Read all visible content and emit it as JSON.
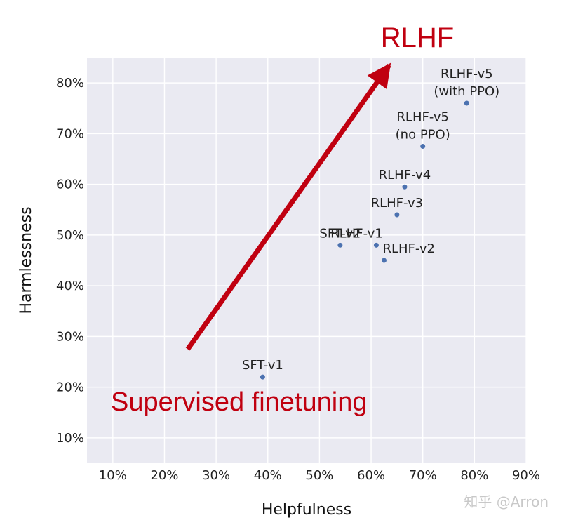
{
  "chart_data": {
    "type": "scatter",
    "xlabel": "Helpfulness",
    "ylabel": "Harmlessness",
    "xlim": [
      0.05,
      0.9
    ],
    "ylim": [
      0.05,
      0.85
    ],
    "xticks": [
      0.1,
      0.2,
      0.3,
      0.4,
      0.5,
      0.6,
      0.7,
      0.8,
      0.9
    ],
    "yticks": [
      0.1,
      0.2,
      0.3,
      0.4,
      0.5,
      0.6,
      0.7,
      0.8
    ],
    "tick_format": "percent",
    "grid": true,
    "point_color": "#4c72b0",
    "background_color": "#eaeaf2",
    "points": [
      {
        "label": "SFT-v1",
        "x": 0.39,
        "y": 0.22
      },
      {
        "label": "SFT-v2",
        "x": 0.54,
        "y": 0.48
      },
      {
        "label": "RLHF-v1",
        "x": 0.61,
        "y": 0.48
      },
      {
        "label": "RLHF-v2",
        "x": 0.625,
        "y": 0.45
      },
      {
        "label": "RLHF-v3",
        "x": 0.65,
        "y": 0.54
      },
      {
        "label": "RLHF-v4",
        "x": 0.665,
        "y": 0.595
      },
      {
        "label": "RLHF-v5\n(no PPO)",
        "x": 0.7,
        "y": 0.675
      },
      {
        "label": "RLHF-v5\n(with PPO)",
        "x": 0.785,
        "y": 0.76
      }
    ],
    "arrow": {
      "from": {
        "x": 0.245,
        "y": 0.275
      },
      "to": {
        "x": 0.635,
        "y": 0.835
      },
      "color": "#c00010"
    },
    "annotations": {
      "top": "RLHF",
      "bottom": "Supervised finetuning",
      "color": "#c00010"
    }
  },
  "watermark": "知乎 @Arron"
}
